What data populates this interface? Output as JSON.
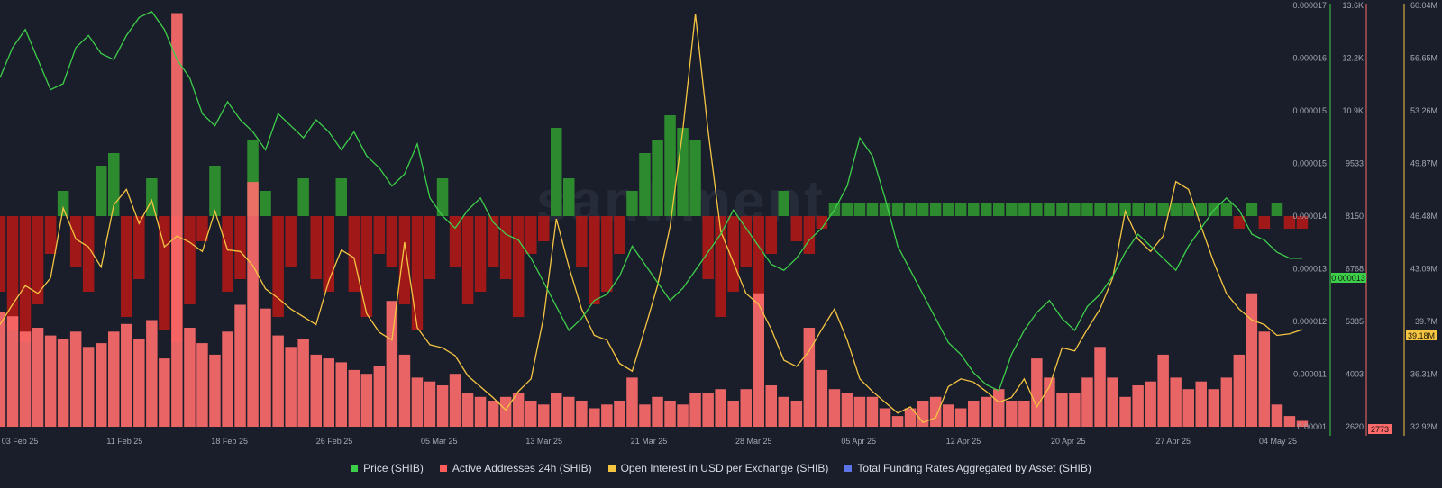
{
  "watermark": "santiment",
  "colors": {
    "background": "#1a1e2b",
    "price": "#3ecf4a",
    "active_addresses": "#ff6b6b",
    "open_interest": "#f5c542",
    "funding_pos": "#2e8a2e",
    "funding_neg": "#a01818",
    "funding_legend": "#5b74e8"
  },
  "legend": [
    {
      "label": "Price (SHIB)",
      "color": "#3ecf4a"
    },
    {
      "label": "Active Addresses 24h (SHIB)",
      "color": "#ff5c5c"
    },
    {
      "label": "Open Interest in USD per Exchange (SHIB)",
      "color": "#f5c542"
    },
    {
      "label": "Total Funding Rates Aggregated by Asset (SHIB)",
      "color": "#5b74e8"
    }
  ],
  "chart_data": {
    "type": "line",
    "x_ticks": [
      "03 Feb 25",
      "11 Feb 25",
      "18 Feb 25",
      "26 Feb 25",
      "05 Mar 25",
      "13 Mar 25",
      "21 Mar 25",
      "28 Mar 25",
      "05 Apr 25",
      "12 Apr 25",
      "20 Apr 25",
      "27 Apr 25",
      "04 May 25"
    ],
    "axes": {
      "price": {
        "ticks": [
          "0.000017",
          "0.000016",
          "0.000015",
          "0.000015",
          "0.000014",
          "0.000013",
          "0.000012",
          "0.000011",
          "0.00001"
        ],
        "current_label": "0.000013"
      },
      "active_addresses": {
        "ticks": [
          "13.6K",
          "12.2K",
          "10.9K",
          "9533",
          "8150",
          "6768",
          "5385",
          "4003",
          "2620"
        ],
        "current_label": "2773"
      },
      "open_interest": {
        "ticks": [
          "60.04M",
          "56.65M",
          "53.26M",
          "49.87M",
          "46.48M",
          "43.09M",
          "39.7M",
          "36.31M",
          "32.92M"
        ],
        "current_label": "39.18M"
      }
    },
    "series": [
      {
        "name": "Price (SHIB)",
        "axis": "price",
        "values": [
          1.58e-05,
          1.63e-05,
          1.66e-05,
          1.61e-05,
          1.56e-05,
          1.57e-05,
          1.63e-05,
          1.65e-05,
          1.62e-05,
          1.61e-05,
          1.65e-05,
          1.68e-05,
          1.69e-05,
          1.66e-05,
          1.61e-05,
          1.58e-05,
          1.52e-05,
          1.5e-05,
          1.54e-05,
          1.51e-05,
          1.49e-05,
          1.46e-05,
          1.52e-05,
          1.5e-05,
          1.48e-05,
          1.51e-05,
          1.49e-05,
          1.46e-05,
          1.49e-05,
          1.45e-05,
          1.43e-05,
          1.4e-05,
          1.42e-05,
          1.47e-05,
          1.38e-05,
          1.35e-05,
          1.33e-05,
          1.36e-05,
          1.38e-05,
          1.34e-05,
          1.32e-05,
          1.31e-05,
          1.28e-05,
          1.24e-05,
          1.2e-05,
          1.16e-05,
          1.18e-05,
          1.21e-05,
          1.22e-05,
          1.25e-05,
          1.3e-05,
          1.27e-05,
          1.24e-05,
          1.21e-05,
          1.23e-05,
          1.26e-05,
          1.29e-05,
          1.32e-05,
          1.36e-05,
          1.33e-05,
          1.3e-05,
          1.27e-05,
          1.26e-05,
          1.28e-05,
          1.31e-05,
          1.33e-05,
          1.36e-05,
          1.4e-05,
          1.48e-05,
          1.45e-05,
          1.38e-05,
          1.3e-05,
          1.26e-05,
          1.22e-05,
          1.18e-05,
          1.14e-05,
          1.12e-05,
          1.09e-05,
          1.07e-05,
          1.06e-05,
          1.12e-05,
          1.16e-05,
          1.19e-05,
          1.21e-05,
          1.18e-05,
          1.16e-05,
          1.2e-05,
          1.22e-05,
          1.25e-05,
          1.29e-05,
          1.32e-05,
          1.3e-05,
          1.28e-05,
          1.26e-05,
          1.3e-05,
          1.33e-05,
          1.36e-05,
          1.38e-05,
          1.36e-05,
          1.32e-05,
          1.31e-05,
          1.29e-05,
          1.28e-05,
          1.28e-05
        ]
      },
      {
        "name": "Active Addresses 24h (SHIB)",
        "axis": "active_addresses",
        "values": [
          5600,
          5500,
          5100,
          5200,
          5000,
          4900,
          5100,
          4700,
          4800,
          5100,
          5300,
          4900,
          5400,
          4400,
          13400,
          5200,
          4800,
          4500,
          5100,
          5800,
          9000,
          5700,
          5000,
          4700,
          4900,
          4500,
          4400,
          4300,
          4100,
          4000,
          4200,
          5900,
          4500,
          3900,
          3800,
          3700,
          4000,
          3500,
          3400,
          3300,
          3400,
          3500,
          3300,
          3200,
          3500,
          3400,
          3300,
          3100,
          3200,
          3300,
          3900,
          3200,
          3400,
          3300,
          3200,
          3500,
          3500,
          3600,
          3300,
          3600,
          6100,
          3700,
          3400,
          3300,
          5200,
          4100,
          3600,
          3500,
          3400,
          3400,
          3100,
          2900,
          3100,
          3300,
          3400,
          3200,
          3100,
          3300,
          3400,
          3600,
          3300,
          3300,
          4400,
          3900,
          3500,
          3500,
          3900,
          4700,
          3900,
          3400,
          3700,
          3800,
          4500,
          3900,
          3600,
          3800,
          3600,
          3900,
          4500,
          6100,
          5100,
          3200,
          2900,
          2773
        ]
      },
      {
        "name": "Open Interest in USD per Exchange (SHIB)",
        "axis": "open_interest",
        "values": [
          39.5,
          40.8,
          42.0,
          41.5,
          42.5,
          47.0,
          45.0,
          44.5,
          43.2,
          47.2,
          48.2,
          46.0,
          47.5,
          44.5,
          45.2,
          44.8,
          44.2,
          46.8,
          44.3,
          44.2,
          43.3,
          41.8,
          41.2,
          40.5,
          40.0,
          39.5,
          42.3,
          44.3,
          43.8,
          40.2,
          39.0,
          38.5,
          44.8,
          39.3,
          38.2,
          38.0,
          37.5,
          36.2,
          35.5,
          34.8,
          34.0,
          35.2,
          36.0,
          40.0,
          46.3,
          43.2,
          40.5,
          38.8,
          38.5,
          37.0,
          36.5,
          39.2,
          42.0,
          45.8,
          52.0,
          59.5,
          52.0,
          45.5,
          43.5,
          41.5,
          40.8,
          39.2,
          37.2,
          36.8,
          37.8,
          39.2,
          40.5,
          38.5,
          36.0,
          35.2,
          34.5,
          33.8,
          34.2,
          33.2,
          33.5,
          35.5,
          36.0,
          35.8,
          35.2,
          34.5,
          34.8,
          36.0,
          34.2,
          35.5,
          38.0,
          37.8,
          39.2,
          40.5,
          42.5,
          46.8,
          45.0,
          44.2,
          45.2,
          48.7,
          48.2,
          45.8,
          43.5,
          41.5,
          40.5,
          39.8,
          39.5,
          38.8,
          38.9,
          39.18
        ]
      },
      {
        "name": "Total Funding Rates Aggregated by Asset (SHIB)",
        "axis": "funding",
        "values": [
          -0.6,
          -0.9,
          -1.0,
          -0.7,
          -0.3,
          0.2,
          -0.4,
          -0.6,
          0.4,
          0.5,
          -0.8,
          -0.5,
          0.3,
          -0.9,
          -1.0,
          -0.7,
          -0.2,
          0.4,
          -0.6,
          -0.5,
          0.6,
          0.2,
          -0.8,
          -0.4,
          0.3,
          -0.5,
          -0.6,
          0.3,
          -0.6,
          -0.8,
          -0.3,
          -0.4,
          -0.7,
          -0.9,
          -0.5,
          0.3,
          -0.4,
          -0.7,
          -0.6,
          -0.4,
          -0.5,
          -0.8,
          -0.3,
          -0.2,
          0.7,
          0.3,
          -0.4,
          -0.7,
          -0.6,
          -0.3,
          0.2,
          0.5,
          0.6,
          0.8,
          0.7,
          0.6,
          -0.5,
          -0.8,
          -0.6,
          -0.4,
          -0.7,
          -0.3,
          0.2,
          -0.2,
          -0.3,
          -0.1,
          0.1,
          0.1,
          0.1,
          0.1,
          0.1,
          0.1,
          0.1,
          0.1,
          0.1,
          0.1,
          0.1,
          0.1,
          0.1,
          0.1,
          0.1,
          0.1,
          0.1,
          0.1,
          0.1,
          0.1,
          0.1,
          0.1,
          0.1,
          0.1,
          0.1,
          0.1,
          0.1,
          0.1,
          0.1,
          0.1,
          0.1,
          0.1,
          -0.1,
          0.1,
          -0.1,
          0.1,
          -0.1,
          -0.1
        ]
      }
    ]
  }
}
